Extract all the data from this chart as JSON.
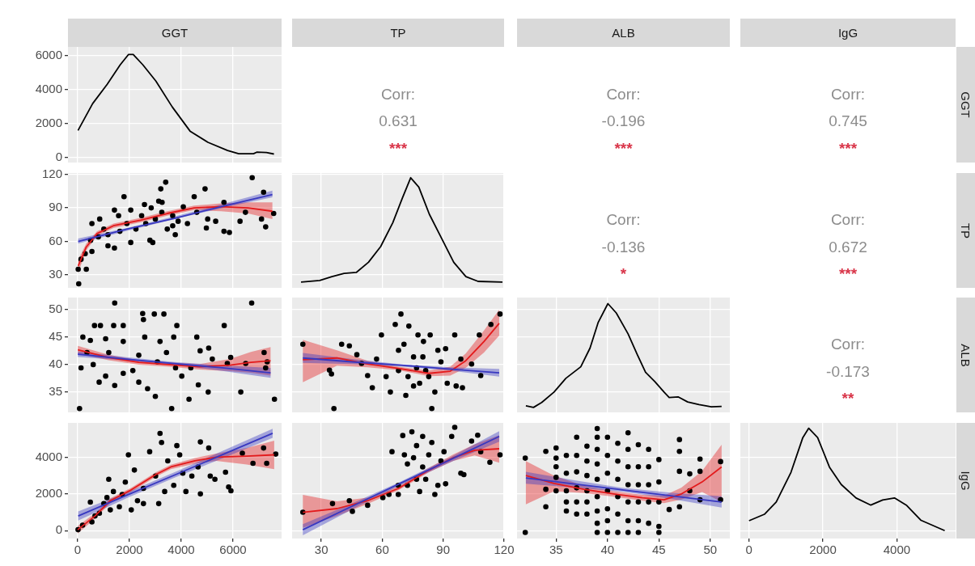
{
  "chart_data": [
    {
      "type": "line",
      "title": "GGT",
      "x": [
        12,
        578,
        1140,
        1640,
        1960,
        2145,
        2520,
        3020,
        3650,
        4340,
        5030,
        5790,
        6220,
        6790,
        6915,
        7290,
        7580
      ],
      "values": [
        1600,
        3180,
        4320,
        5460,
        6070,
        6070,
        5460,
        4510,
        2990,
        1560,
        900,
        420,
        230,
        230,
        320,
        300,
        210
      ],
      "color": "#000000",
      "xlim": [
        -375,
        7875
      ],
      "xticks": [
        0,
        2000,
        4000,
        6000
      ],
      "ylim": [
        -290,
        6520
      ],
      "yticks": [
        0,
        2000,
        4000,
        6000
      ],
      "tick_labels": "y",
      "grid": true
    },
    {
      "type": "other",
      "title": "TP",
      "annotations": [
        "Corr:",
        "0.631",
        "***"
      ]
    },
    {
      "type": "other",
      "title": "ALB",
      "annotations": [
        "Corr:",
        "-0.196",
        "***"
      ]
    },
    {
      "type": "other",
      "title": "IgG",
      "y2label": "GGT",
      "annotations": [
        "Corr:",
        "0.745",
        "***"
      ]
    },
    {
      "type": "scatter",
      "marker": "circle",
      "xlim": [
        -375,
        7875
      ],
      "xticks": [
        0,
        2000,
        4000,
        6000
      ],
      "ylim": [
        18.4,
        121.2
      ],
      "yticks": [
        30,
        60,
        90,
        120
      ],
      "tick_labels": "y",
      "grid": true,
      "series": [
        {
          "type": "scatter",
          "color": "#000000",
          "x": [
            40,
            20,
            333,
            130,
            290,
            550,
            500,
            550,
            800,
            1010,
            1170,
            1420,
            1420,
            1630,
            1790,
            2050,
            2050,
            2250,
            2470,
            2580,
            2790,
            2900,
            3000,
            3210,
            3260,
            3400,
            3130,
            3460,
            3670,
            3770,
            3880,
            4080,
            4240,
            4500,
            4600,
            4920,
            4970,
            5020,
            5330,
            5650,
            5650,
            5860,
            6270,
            6480,
            6740,
            7100,
            7180,
            7260,
            7570,
            850,
            1170,
            1580,
            1900,
            2630,
            3250,
            3670,
            2840
          ],
          "values": [
            22,
            35,
            35,
            44,
            49,
            51,
            61,
            76,
            64,
            71,
            56,
            54,
            88,
            69,
            100,
            59,
            88,
            71,
            83,
            93,
            61,
            59,
            80,
            107,
            95,
            113,
            96,
            71,
            83,
            66,
            78,
            91,
            76,
            100,
            86,
            107,
            72,
            80,
            78,
            95,
            69,
            68,
            78,
            86,
            117,
            80,
            104,
            73,
            85,
            80,
            66,
            83,
            76,
            76,
            86,
            74,
            90
          ]
        },
        {
          "type": "line",
          "marker": "none",
          "color": "#e31a1c",
          "x": [
            20,
            333,
            750,
            1380,
            2420,
            3460,
            4500,
            5540,
            6580,
            7520
          ],
          "values": [
            38,
            55,
            67,
            74,
            79,
            85,
            90,
            91,
            90,
            87
          ],
          "lower": [
            32,
            52,
            65,
            72,
            77,
            83,
            88,
            87,
            85,
            80
          ],
          "upper": [
            44,
            58,
            69,
            76,
            81,
            87,
            92,
            94,
            95,
            95
          ]
        },
        {
          "type": "line",
          "marker": "none",
          "color": "#3838c0",
          "x": [
            20,
            1900,
            3800,
            5700,
            7520
          ],
          "values": [
            60,
            71,
            81,
            92,
            102
          ],
          "lower": [
            58,
            69.5,
            80.3,
            90.5,
            99.5
          ],
          "upper": [
            62.5,
            72,
            82.7,
            94,
            105.5
          ]
        }
      ]
    },
    {
      "type": "line",
      "x": [
        20,
        29.2,
        35.2,
        41.2,
        47.2,
        53.2,
        59.2,
        65.2,
        70,
        74,
        78,
        83.2,
        89.2,
        95.2,
        101.2,
        107.2,
        119.2
      ],
      "values": [
        23.5,
        25,
        28.5,
        31.4,
        32.2,
        41.3,
        55.3,
        76.8,
        99.2,
        117,
        108.6,
        84.3,
        62.8,
        41.3,
        28.5,
        24.2,
        23.5
      ],
      "color": "#000000",
      "xlim": [
        15.6,
        120
      ],
      "xticks": [
        30,
        60,
        90,
        120
      ],
      "ylim": [
        18.4,
        121.2
      ],
      "yticks": [
        30,
        60,
        90,
        120
      ],
      "tick_labels": false,
      "grid": true
    },
    {
      "type": "other",
      "annotations": [
        "Corr:",
        "-0.136",
        "*"
      ]
    },
    {
      "type": "other",
      "y2label": "TP",
      "annotations": [
        "Corr:",
        "0.672",
        "***"
      ]
    },
    {
      "type": "scatter",
      "marker": "circle",
      "xlim": [
        -375,
        7875
      ],
      "xticks": [
        0,
        2000,
        4000,
        6000
      ],
      "ylim": [
        31.3,
        52.2
      ],
      "yticks": [
        35,
        40,
        45,
        50
      ],
      "tick_labels": "y",
      "grid": true,
      "series": [
        {
          "type": "scatter",
          "color": "#000000",
          "x": [
            72,
            1430,
            6720,
            3630,
            7600,
            6300,
            4300,
            4660,
            5040,
            2510,
            2960,
            3330,
            2540,
            650,
            880,
            1390,
            1760,
            3830,
            5660,
            200,
            490,
            1080,
            1760,
            2590,
            3180,
            3710,
            4600,
            130,
            360,
            600,
            1080,
            1430,
            1760,
            2130,
            2700,
            3000,
            2360,
            1200,
            3080,
            3430,
            3780,
            4020,
            4370,
            4730,
            5060,
            5200,
            5780,
            5910,
            6490,
            7200,
            7320,
            7260,
            2360,
            830
          ],
          "values": [
            32,
            51.2,
            51.2,
            32,
            33.7,
            35,
            33.7,
            36.3,
            35,
            49.3,
            49.2,
            49.2,
            48.2,
            47.1,
            47.1,
            47.1,
            47.1,
            47.1,
            47.1,
            45,
            44.4,
            44.7,
            44.2,
            45,
            44.2,
            45,
            45,
            39.4,
            42.2,
            40,
            37.9,
            36.2,
            38.4,
            38.9,
            35.6,
            34.2,
            41.7,
            42.2,
            40.5,
            42.2,
            39.4,
            37.9,
            39.4,
            42.5,
            43,
            41,
            40.2,
            41.3,
            40.2,
            42.2,
            40.5,
            39.4,
            36.8,
            36.8
          ]
        },
        {
          "type": "line",
          "marker": "none",
          "color": "#e31a1c",
          "x": [
            6,
            1190,
            2360,
            3530,
            4700,
            5880,
            6690,
            7450
          ],
          "values": [
            42.7,
            41.3,
            40.4,
            40,
            39.6,
            39.9,
            40.4,
            40.7
          ],
          "lower": [
            42,
            40.8,
            40,
            39.6,
            39.1,
            38.8,
            38.5,
            38
          ],
          "upper": [
            43.4,
            41.8,
            40.8,
            40.4,
            40.1,
            41,
            42.3,
            43.2
          ]
        },
        {
          "type": "line",
          "marker": "none",
          "color": "#3838c0",
          "x": [
            6,
            1870,
            3730,
            5590,
            7450
          ],
          "values": [
            41.9,
            41,
            40.2,
            39.4,
            38.5
          ],
          "lower": [
            41.4,
            40.75,
            39.95,
            38.85,
            37.6
          ],
          "upper": [
            42.4,
            41.35,
            40.45,
            39.85,
            39.4
          ]
        }
      ]
    },
    {
      "type": "scatter",
      "marker": "circle",
      "xlim": [
        15.6,
        120
      ],
      "xticks": [
        30,
        60,
        90,
        120
      ],
      "ylim": [
        31.3,
        52.2
      ],
      "yticks": [
        35,
        40,
        45,
        50
      ],
      "tick_labels": false,
      "grid": true,
      "series": [
        {
          "type": "scatter",
          "color": "#000000",
          "x": [
            20.9,
            34,
            35,
            36.2,
            40,
            43.8,
            47.5,
            49.8,
            52.8,
            55.1,
            57.2,
            59.6,
            61.9,
            64,
            66.4,
            69.2,
            68,
            71.6,
            73.1,
            75.4,
            77.6,
            78.4,
            81.4,
            83.6,
            84.4,
            85.9,
            87.4,
            88.9,
            91.2,
            92,
            95.7,
            96.4,
            98.7,
            99.5,
            104,
            107.8,
            108.5,
            113.5,
            118,
            68,
            72.7,
            76.9,
            80,
            75.4,
            82.9,
            70.7,
            80.3
          ],
          "values": [
            43.7,
            39,
            38.3,
            32,
            43.7,
            43.4,
            41.8,
            40.2,
            38,
            35.8,
            41,
            45.4,
            37.8,
            35,
            47.3,
            49.2,
            42.6,
            34.4,
            47,
            41.4,
            45.4,
            36.6,
            38.9,
            45.4,
            32,
            35,
            42.6,
            40.5,
            42.9,
            36.6,
            45.4,
            36.1,
            41,
            35.8,
            40.1,
            45.4,
            38,
            47.3,
            49.2,
            38.9,
            37.8,
            39.4,
            41.4,
            36.1,
            37.8,
            43.7,
            44.2
          ]
        },
        {
          "type": "line",
          "marker": "none",
          "color": "#e31a1c",
          "x": [
            20.9,
            37.7,
            52.8,
            68,
            83,
            93.5,
            101.1,
            110.1,
            117.6
          ],
          "values": [
            40.9,
            41.2,
            40.1,
            39.3,
            38.4,
            38.8,
            40.7,
            44.2,
            47.5
          ],
          "lower": [
            36.8,
            39.8,
            39.5,
            39,
            37.9,
            38,
            39.4,
            42.2,
            45.3
          ],
          "upper": [
            44.5,
            42.6,
            40.7,
            39.6,
            38.9,
            39.6,
            42,
            46.2,
            50
          ]
        },
        {
          "type": "line",
          "marker": "none",
          "color": "#3838c0",
          "x": [
            20.9,
            45,
            69,
            93,
            117.6
          ],
          "values": [
            41.2,
            40.5,
            39.9,
            39.2,
            38.5
          ],
          "lower": [
            40.3,
            40.1,
            39.65,
            38.9,
            37.8
          ],
          "upper": [
            42.1,
            41,
            40.07,
            39.5,
            39.2
          ]
        }
      ]
    },
    {
      "type": "line",
      "x": [
        32.06,
        32.8,
        33.6,
        34.8,
        35.95,
        37.4,
        38.3,
        39.1,
        40.04,
        40.85,
        42,
        42.9,
        43.7,
        44.6,
        45.5,
        46,
        46.9,
        47.8,
        48.9,
        50.1,
        51.1
      ],
      "values": [
        32.5,
        32.2,
        33.1,
        35,
        37.5,
        39.6,
        43,
        47.7,
        51.1,
        49.4,
        45.6,
        41.8,
        38.6,
        36.9,
        35,
        34,
        34.1,
        33.2,
        32.7,
        32.3,
        32.4
      ],
      "color": "#000000",
      "xlim": [
        31.2,
        51.9
      ],
      "xticks": [
        35,
        40,
        45,
        50
      ],
      "ylim": [
        31.3,
        52.2
      ],
      "yticks": [
        35,
        40,
        45,
        50
      ],
      "tick_labels": false,
      "grid": true
    },
    {
      "type": "other",
      "y2label": "ALB",
      "annotations": [
        "Corr:",
        "-0.173",
        "**"
      ]
    },
    {
      "type": "scatter",
      "marker": "circle",
      "xlim": [
        -375,
        7875
      ],
      "xticks": [
        0,
        2000,
        4000,
        6000
      ],
      "ylim": [
        -430,
        5870
      ],
      "yticks": [
        0,
        2000,
        4000
      ],
      "grid": true,
      "series": [
        {
          "type": "scatter",
          "color": "#000000",
          "x": [
            14,
            190,
            550,
            490,
            840,
            1130,
            1200,
            1610,
            1840,
            1960,
            2190,
            2310,
            2540,
            2780,
            3010,
            3130,
            3180,
            3240,
            3480,
            3710,
            3830,
            3940,
            4060,
            4180,
            4410,
            4740,
            4740,
            5060,
            5120,
            5300,
            5710,
            5830,
            5920,
            6360,
            6770,
            7180,
            7300,
            7650,
            1260,
            2070,
            2540,
            1380,
            1720,
            1010,
            670,
            4650,
            3360
          ],
          "values": [
            50,
            300,
            470,
            1550,
            950,
            1800,
            2800,
            1300,
            2640,
            4130,
            3300,
            1630,
            2300,
            4300,
            2970,
            1470,
            5300,
            4800,
            3800,
            2470,
            4630,
            4130,
            3130,
            2130,
            2970,
            4830,
            2000,
            4500,
            2970,
            2800,
            3180,
            2380,
            2170,
            4220,
            3670,
            4500,
            3670,
            4170,
            1130,
            1130,
            1470,
            2130,
            1970,
            1470,
            800,
            3470,
            2130
          ]
        },
        {
          "type": "line",
          "marker": "none",
          "color": "#e31a1c",
          "x": [
            0,
            670,
            1260,
            2070,
            3010,
            3600,
            4530,
            5350,
            6530,
            7590
          ],
          "values": [
            50,
            800,
            1630,
            2220,
            3050,
            3470,
            3800,
            4000,
            4060,
            4130
          ],
          "lower": [
            -150,
            650,
            1500,
            2100,
            2930,
            3350,
            3650,
            3800,
            3600,
            3350
          ],
          "upper": [
            250,
            950,
            1760,
            2340,
            3170,
            3590,
            3950,
            4200,
            4500,
            4900
          ]
        },
        {
          "type": "line",
          "marker": "none",
          "color": "#3838c0",
          "x": [
            20,
            1900,
            3780,
            5660,
            7530
          ],
          "values": [
            800,
            1930,
            3050,
            4180,
            5300
          ],
          "lower": [
            550,
            1776,
            2902,
            3978,
            5050
          ],
          "upper": [
            1050,
            2076,
            3202,
            4378,
            5550
          ]
        }
      ]
    },
    {
      "type": "scatter",
      "marker": "circle",
      "xlim": [
        15.6,
        120
      ],
      "xticks": [
        30,
        60,
        90,
        120
      ],
      "ylim": [
        -430,
        5870
      ],
      "yticks": [
        0,
        2000,
        4000
      ],
      "tick_labels": "x",
      "grid": true,
      "series": [
        {
          "type": "scatter",
          "color": "#000000",
          "x": [
            20.9,
            35.5,
            43.8,
            45.3,
            52.8,
            60.3,
            64.8,
            67.9,
            70.1,
            72.4,
            74.6,
            76.9,
            79.9,
            81.4,
            84.4,
            85.9,
            88.9,
            91.2,
            94.2,
            95.7,
            98.7,
            100.2,
            104,
            107,
            108.5,
            113,
            118,
            67.9,
            72.4,
            76.9,
            79.9,
            82.9,
            75.4,
            87.4,
            90.4,
            63.3,
            78.4,
            70.9
          ],
          "values": [
            1000,
            1470,
            1630,
            1050,
            1380,
            1800,
            4300,
            2470,
            5180,
            3630,
            5380,
            4630,
            5130,
            2800,
            4800,
            1970,
            3800,
            2550,
            5130,
            5630,
            3130,
            3050,
            4880,
            5200,
            4300,
            3720,
            4130,
            1970,
            2470,
            2800,
            3470,
            4130,
            3970,
            2470,
            4300,
            1970,
            2130,
            4130
          ]
        },
        {
          "type": "line",
          "marker": "none",
          "color": "#e31a1c",
          "x": [
            20.9,
            37.7,
            52.8,
            68,
            83,
            95,
            105.5,
            117.6
          ],
          "values": [
            1000,
            1200,
            1630,
            2300,
            3300,
            3970,
            4380,
            4460
          ],
          "lower": [
            150,
            800,
            1450,
            2200,
            3180,
            3800,
            4100,
            3700
          ],
          "upper": [
            1950,
            1600,
            1800,
            2420,
            3430,
            4150,
            4700,
            5200
          ]
        },
        {
          "type": "line",
          "marker": "none",
          "color": "#3838c0",
          "x": [
            20.9,
            45,
            69,
            93,
            117.6
          ],
          "values": [
            50,
            1320,
            2580,
            3840,
            5130
          ],
          "lower": [
            -250,
            1150,
            2480,
            3700,
            4850
          ],
          "upper": [
            350,
            1480,
            2670,
            3970,
            5420
          ]
        }
      ]
    },
    {
      "type": "scatter",
      "marker": "circle",
      "xlim": [
        31.2,
        51.9
      ],
      "xticks": [
        35,
        40,
        45,
        50
      ],
      "ylim": [
        -430,
        5870
      ],
      "yticks": [
        0,
        2000,
        4000
      ],
      "tick_labels": "x",
      "grid": true,
      "series": [
        {
          "type": "scatter",
          "color": "#000000",
          "x": [
            32,
            32,
            34,
            34,
            34,
            35,
            35,
            35,
            35,
            35,
            36,
            36,
            36,
            36,
            36,
            37,
            37,
            37,
            37,
            37,
            37,
            38,
            38,
            38,
            38,
            38,
            38,
            39,
            39,
            39,
            39,
            39,
            39,
            39,
            39,
            39,
            40,
            40,
            40,
            40,
            40,
            40,
            40,
            41,
            41,
            41,
            41,
            41,
            41,
            42,
            42,
            42,
            42,
            42,
            42,
            42,
            43,
            43,
            43,
            43,
            43,
            43,
            44,
            44,
            44,
            44,
            44,
            45,
            45,
            45,
            45,
            45,
            46,
            47,
            47,
            47,
            47,
            48,
            48,
            49,
            49,
            49,
            51,
            51
          ],
          "values": [
            3950,
            -100,
            4320,
            2250,
            1300,
            4500,
            3950,
            3480,
            2900,
            2170,
            4100,
            3130,
            2170,
            1560,
            1070,
            5090,
            4100,
            3200,
            2330,
            1560,
            900,
            4600,
            3790,
            3000,
            2170,
            1560,
            900,
            5560,
            5090,
            4430,
            3630,
            2800,
            1850,
            1070,
            400,
            -100,
            5090,
            4100,
            3130,
            2170,
            1190,
            540,
            -100,
            4760,
            3790,
            2800,
            1850,
            900,
            -100,
            5330,
            4430,
            3480,
            2500,
            1560,
            540,
            -100,
            4680,
            3480,
            2500,
            1560,
            540,
            -100,
            4430,
            3480,
            2500,
            1560,
            400,
            3870,
            2650,
            1560,
            230,
            -100,
            1150,
            4960,
            4320,
            3230,
            1300,
            3090,
            2170,
            3900,
            3230,
            1680,
            3760,
            1680
          ]
        },
        {
          "type": "line",
          "marker": "none",
          "color": "#e31a1c",
          "x": [
            32.06,
            34.8,
            37.7,
            40.6,
            43.4,
            45.5,
            47.2,
            49.2,
            51.1
          ],
          "values": [
            3000,
            2570,
            2250,
            2000,
            1790,
            1680,
            2000,
            2650,
            3470
          ],
          "lower": [
            1430,
            2150,
            2050,
            1850,
            1630,
            1500,
            1700,
            2100,
            1560
          ],
          "upper": [
            3790,
            3000,
            2450,
            2150,
            1950,
            1900,
            2350,
            3250,
            4680
          ]
        },
        {
          "type": "line",
          "marker": "none",
          "color": "#3838c0",
          "x": [
            32.06,
            36.8,
            41.6,
            46.3,
            51.1
          ],
          "values": [
            2870,
            2540,
            2210,
            1890,
            1560
          ],
          "lower": [
            2550,
            2350,
            2110,
            1720,
            1250
          ],
          "upper": [
            3200,
            2740,
            2320,
            2060,
            1870
          ]
        }
      ]
    },
    {
      "type": "line",
      "y2label": "IgG",
      "x": [
        0,
        416,
        736,
        1136,
        1456,
        1616,
        1856,
        2176,
        2496,
        2896,
        3296,
        3616,
        3936,
        4256,
        4656,
        5296
      ],
      "values": [
        540,
        890,
        1560,
        3180,
        5070,
        5580,
        5070,
        3460,
        2510,
        1780,
        1390,
        1670,
        1780,
        1390,
        560,
        0
      ],
      "color": "#000000",
      "xlim": [
        -235,
        5590
      ],
      "xticks": [
        0,
        2000,
        4000
      ],
      "ylim": [
        -430,
        5870
      ],
      "yticks": [
        0,
        2000,
        4000
      ],
      "tick_labels": "x",
      "grid": true
    }
  ]
}
